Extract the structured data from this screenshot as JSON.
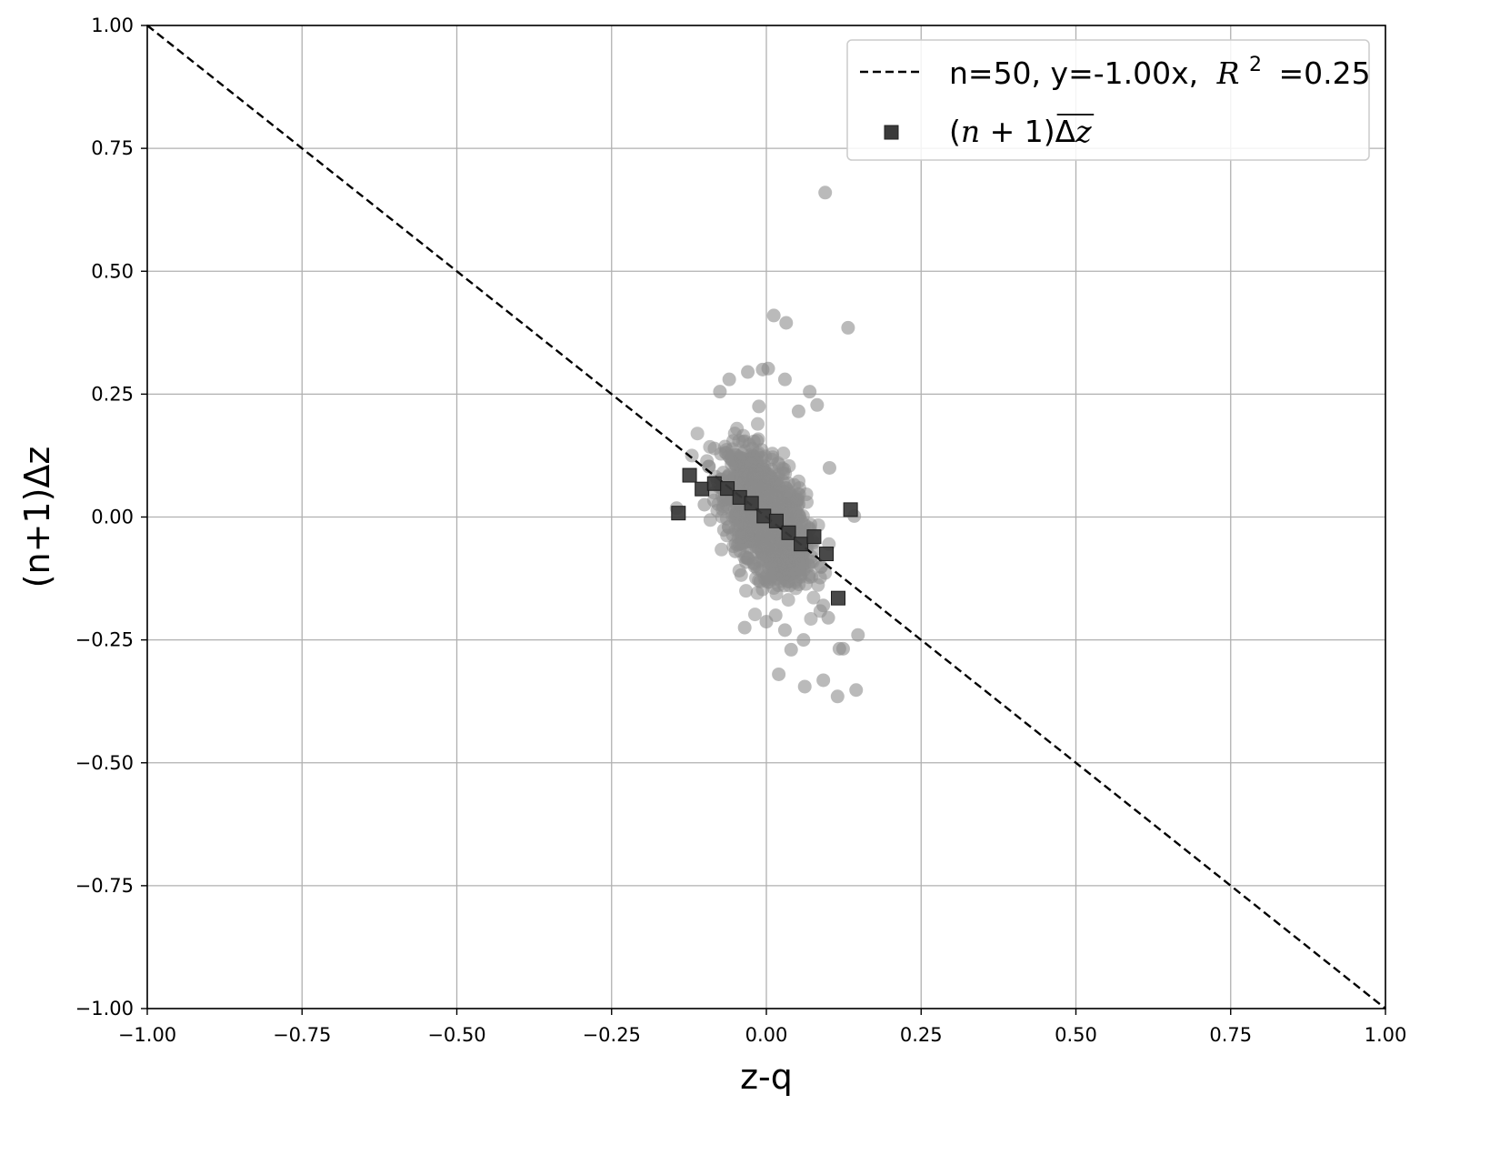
{
  "chart_data": {
    "type": "scatter",
    "xlabel": "z-q",
    "ylabel": "(n+1)Δz",
    "xlim": [
      -1.0,
      1.0
    ],
    "ylim": [
      -1.0,
      1.0
    ],
    "x_ticks": [
      "−1.00",
      "−0.75",
      "−0.50",
      "−0.25",
      "0.00",
      "0.25",
      "0.50",
      "0.75",
      "1.00"
    ],
    "y_ticks": [
      "1.00",
      "0.75",
      "0.50",
      "0.25",
      "0.00",
      "−0.25",
      "−0.50",
      "−0.75",
      "−1.00"
    ],
    "grid": true,
    "legend_position": "top-right",
    "colors": {
      "scatter": "#8c8c8c",
      "binned": "#3a3a3a",
      "fit_line": "#000000"
    },
    "fit_line": {
      "legend_label": "n=50, y=-1.00x,",
      "legend_r2": "=0.25",
      "slope": -1.0,
      "intercept": 0.0
    },
    "binned_means": {
      "legend_label": "(n+1)Δz",
      "points": [
        [
          -0.142,
          0.008
        ],
        [
          -0.124,
          0.085
        ],
        [
          -0.104,
          0.057
        ],
        [
          -0.084,
          0.068
        ],
        [
          -0.063,
          0.058
        ],
        [
          -0.043,
          0.04
        ],
        [
          -0.024,
          0.028
        ],
        [
          -0.004,
          0.002
        ],
        [
          0.016,
          -0.008
        ],
        [
          0.036,
          -0.032
        ],
        [
          0.056,
          -0.055
        ],
        [
          0.077,
          -0.04
        ],
        [
          0.097,
          -0.075
        ],
        [
          0.116,
          -0.165
        ],
        [
          0.136,
          0.015
        ]
      ]
    },
    "scatter_outliers": [
      [
        0.095,
        0.66
      ],
      [
        0.012,
        0.41
      ],
      [
        0.032,
        0.395
      ],
      [
        0.132,
        0.385
      ],
      [
        -0.006,
        0.3
      ],
      [
        0.003,
        0.302
      ],
      [
        0.03,
        0.28
      ],
      [
        -0.06,
        0.28
      ],
      [
        -0.03,
        0.295
      ],
      [
        -0.075,
        0.255
      ],
      [
        0.07,
        0.255
      ],
      [
        0.082,
        0.228
      ],
      [
        0.052,
        0.215
      ],
      [
        -0.012,
        0.225
      ],
      [
        0.102,
        0.1
      ],
      [
        -0.145,
        0.018
      ],
      [
        0.142,
        0.002
      ],
      [
        -0.1,
        0.025
      ],
      [
        0.06,
        -0.25
      ],
      [
        -0.035,
        -0.225
      ],
      [
        0.04,
        -0.27
      ],
      [
        0.02,
        -0.32
      ],
      [
        0.062,
        -0.345
      ],
      [
        0.092,
        -0.332
      ],
      [
        0.115,
        -0.365
      ],
      [
        0.145,
        -0.352
      ],
      [
        0.118,
        -0.268
      ],
      [
        0.124,
        -0.268
      ],
      [
        0.148,
        -0.24
      ],
      [
        0.1,
        -0.205
      ],
      [
        0.092,
        -0.18
      ],
      [
        0.0,
        -0.213
      ],
      [
        0.015,
        -0.2
      ],
      [
        -0.04,
        -0.04
      ],
      [
        -0.05,
        -0.07
      ],
      [
        0.03,
        -0.23
      ]
    ],
    "scatter_cloud": {
      "center": [
        0.0,
        0.0
      ],
      "count": 1400,
      "correlation": -0.5
    }
  }
}
